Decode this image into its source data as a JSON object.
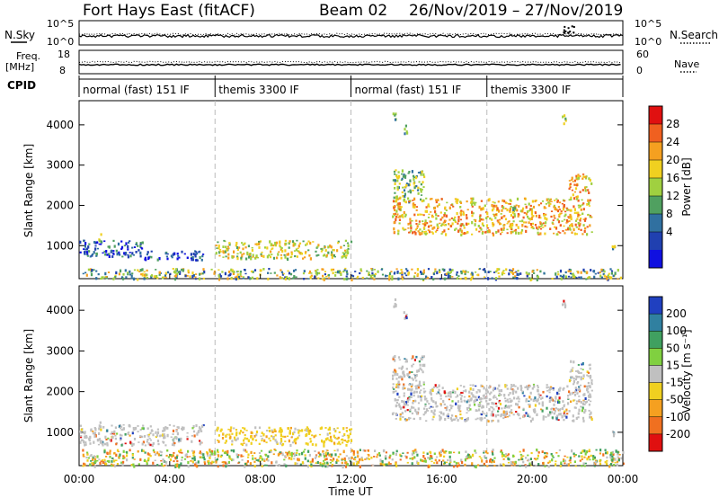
{
  "header": {
    "station": "Fort Hays East (fitACF)",
    "beam": "Beam 02",
    "dates": "26/Nov/2019 – 27/Nov/2019"
  },
  "strip": {
    "nsky_label": "N.Sky",
    "nsearch_label": "N.Search",
    "nsky_ticks": [
      "10^5",
      "10^0"
    ],
    "nsearch_ticks": [
      "10^5",
      "10^0"
    ],
    "freq_label": "Freq.",
    "freq_unit": "[MHz]",
    "freq_ticks": [
      "18",
      "8"
    ],
    "nave_label": "Nave",
    "nave_ticks": [
      "60",
      "0"
    ],
    "cpid_label": "CPID",
    "cpid_modes": [
      {
        "label": "normal (fast) 151 IF",
        "start": 0,
        "end": 6
      },
      {
        "label": "themis 3300 IF",
        "start": 6,
        "end": 12
      },
      {
        "label": "normal (fast) 151 IF",
        "start": 12,
        "end": 18
      },
      {
        "label": "themis 3300 IF",
        "start": 18,
        "end": 24
      }
    ]
  },
  "x_axis": {
    "label": "Time UT",
    "ticks": [
      "00:00",
      "04:00",
      "08:00",
      "12:00",
      "16:00",
      "20:00",
      "00:00"
    ],
    "range_hours": [
      0,
      24
    ]
  },
  "power_colorbar": {
    "label": "Power [dB]",
    "ticks": [
      "28",
      "24",
      "20",
      "16",
      "12",
      "8",
      "4"
    ],
    "colors": [
      "#e01010",
      "#f06020",
      "#f5a020",
      "#f0d020",
      "#a0d040",
      "#50a060",
      "#3070a0",
      "#2040b0",
      "#1010e0"
    ]
  },
  "velocity_colorbar": {
    "label": "Velocity [m s⁻¹]",
    "ticks": [
      "200",
      "100",
      "50",
      "15",
      "-15",
      "-50",
      "-100",
      "-200"
    ],
    "colors": [
      "#2040c0",
      "#3080a0",
      "#40a060",
      "#80d040",
      "#c0c0c0",
      "#f0d020",
      "#f5a020",
      "#f07020",
      "#e01010"
    ]
  },
  "chart_data": [
    {
      "type": "heatmap",
      "name": "power",
      "ylabel": "Slant Range [km]",
      "yticks": [
        "4000",
        "3000",
        "2000",
        "1000"
      ],
      "ylim": [
        180,
        4600
      ],
      "xlim": [
        0,
        24
      ],
      "scatter_regions": [
        {
          "t0": 0.1,
          "t1": 24,
          "r0": 180,
          "r1": 450,
          "level": "mixed-low"
        },
        {
          "t0": 0.0,
          "t1": 2.8,
          "r0": 750,
          "r1": 1150,
          "level": 8
        },
        {
          "t0": 2.8,
          "t1": 5.5,
          "r0": 650,
          "r1": 900,
          "level": 8
        },
        {
          "t0": 6.0,
          "t1": 12.0,
          "r0": 700,
          "r1": 1150,
          "level": 16
        },
        {
          "t0": 13.8,
          "t1": 15.2,
          "r0": 2100,
          "r1": 2900,
          "level": 12
        },
        {
          "t0": 13.8,
          "t1": 22.6,
          "r0": 1300,
          "r1": 2200,
          "level": 20
        },
        {
          "t0": 21.6,
          "t1": 22.6,
          "r0": 2200,
          "r1": 2800,
          "level": 20
        }
      ]
    },
    {
      "type": "heatmap",
      "name": "velocity",
      "ylabel": "Slant Range [km]",
      "yticks": [
        "4000",
        "3000",
        "2000",
        "1000"
      ],
      "ylim": [
        180,
        4600
      ],
      "xlim": [
        0,
        24
      ],
      "scatter_regions": [
        {
          "t0": 0.1,
          "t1": 24,
          "r0": 180,
          "r1": 600,
          "level": "mixed"
        },
        {
          "t0": 0.0,
          "t1": 5.5,
          "r0": 700,
          "r1": 1200,
          "level": 0
        },
        {
          "t0": 6.0,
          "t1": 12.0,
          "r0": 700,
          "r1": 1150,
          "level": -50
        },
        {
          "t0": 13.8,
          "t1": 15.2,
          "r0": 2100,
          "r1": 2900,
          "level": 0
        },
        {
          "t0": 13.8,
          "t1": 22.6,
          "r0": 1300,
          "r1": 2200,
          "level": 0
        },
        {
          "t0": 21.6,
          "t1": 22.6,
          "r0": 2200,
          "r1": 2800,
          "level": 0
        }
      ]
    }
  ]
}
